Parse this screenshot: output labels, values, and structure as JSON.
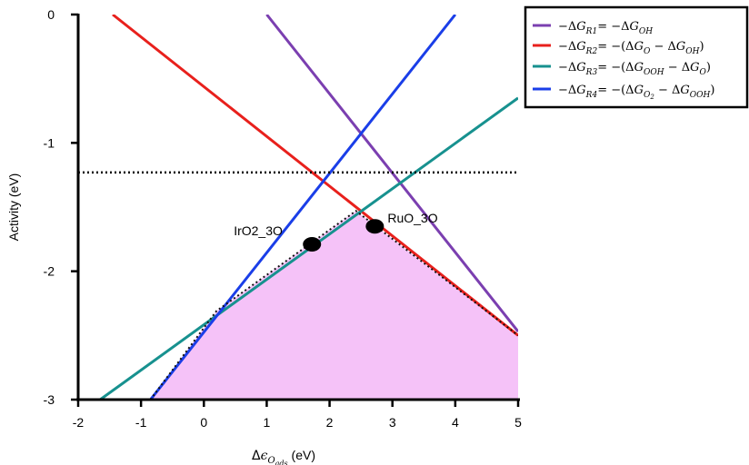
{
  "chart_data": {
    "type": "line",
    "xlabel": "Δϵ_{O_ads} (eV)",
    "ylabel": "Activity (eV)",
    "xlim": [
      -2,
      5
    ],
    "ylim": [
      -3,
      0
    ],
    "x_ticks": [
      -2,
      -1,
      0,
      1,
      2,
      3,
      4,
      5
    ],
    "y_ticks": [
      0,
      -1,
      -2,
      -3
    ],
    "x_tick_labels": [
      "-2",
      "-1",
      "0",
      "1",
      "2",
      "3",
      "4",
      "5"
    ],
    "y_tick_labels": [
      "0",
      "-1",
      "-2",
      "-3"
    ],
    "series": [
      {
        "name": "−ΔG_R1 = −ΔG_OH",
        "color": "#7b3fb0",
        "x": [
          1.0,
          5.0
        ],
        "y": [
          0.0,
          -2.47
        ]
      },
      {
        "name": "−ΔG_R2 = −(ΔG_O − ΔG_OH)",
        "color": "#e8201c",
        "x": [
          -1.45,
          5.0
        ],
        "y": [
          0.0,
          -2.5
        ]
      },
      {
        "name": "−ΔG_R3 = −(ΔG_OOH − ΔG_O)",
        "color": "#17918f",
        "x": [
          -1.65,
          5.0
        ],
        "y": [
          -3.0,
          -0.65
        ]
      },
      {
        "name": "−ΔG_R4 = −(ΔG_O2 − ΔG_OOH)",
        "color": "#1a3ee8",
        "x": [
          -0.85,
          4.0
        ],
        "y": [
          -3.0,
          0.0
        ]
      }
    ],
    "reference_line": {
      "y": -1.23,
      "style": "dotted"
    },
    "activity_region": {
      "color": "#f5c2f8",
      "x": [
        -0.85,
        0.2,
        2.42,
        5.0,
        5.0
      ],
      "y": [
        -3.0,
        -2.31,
        -1.53,
        -2.5,
        -3.0
      ]
    },
    "points": [
      {
        "label": "IrO2_3O",
        "x": 1.72,
        "y": -1.79
      },
      {
        "label": "RuO_3O",
        "x": 2.72,
        "y": -1.65
      }
    ],
    "legend_position": "top-right",
    "grid": false
  }
}
